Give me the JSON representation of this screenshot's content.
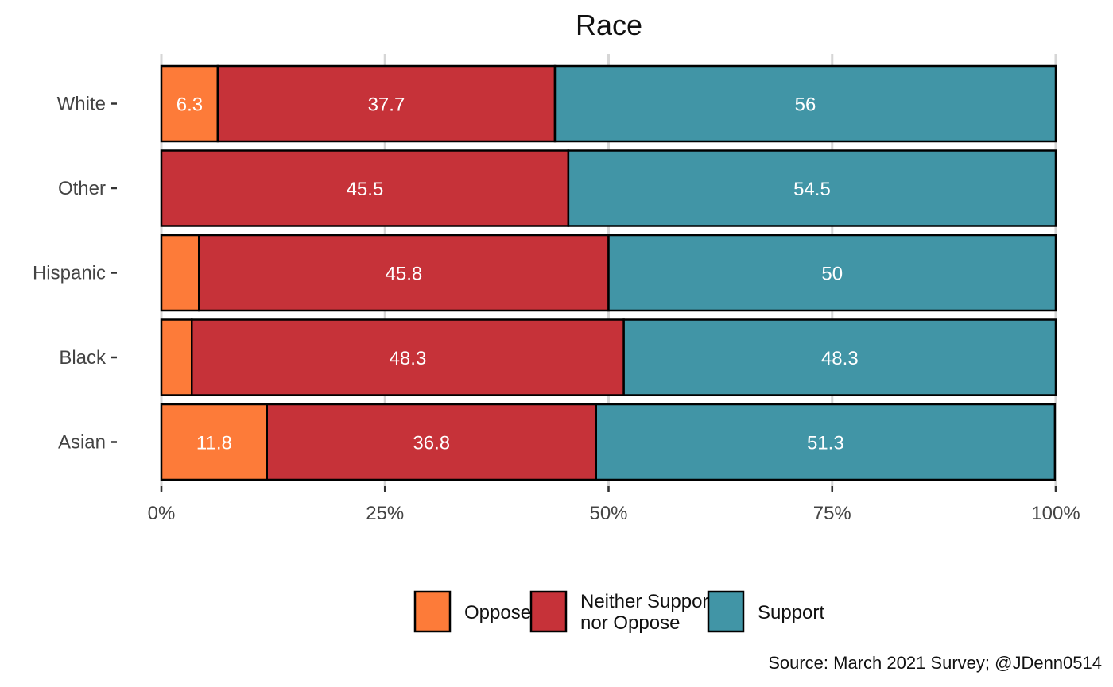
{
  "chart_data": {
    "type": "bar",
    "orientation": "horizontal",
    "stacked": true,
    "title": "Race",
    "categories": [
      "White",
      "Other",
      "Hispanic",
      "Black",
      "Asian"
    ],
    "series": [
      {
        "name": "Oppose",
        "color": "#FD7B39",
        "values": [
          6.3,
          0,
          4.2,
          3.4,
          11.8
        ],
        "labels": [
          "6.3",
          "",
          "",
          "",
          "11.8"
        ]
      },
      {
        "name": "Neither Support nor Oppose",
        "legend_lines": [
          "Neither Support",
          "nor Oppose"
        ],
        "color": "#C63239",
        "values": [
          37.7,
          45.5,
          45.8,
          48.3,
          36.8
        ],
        "labels": [
          "37.7",
          "45.5",
          "45.8",
          "48.3",
          "36.8"
        ]
      },
      {
        "name": "Support",
        "color": "#4195A6",
        "values": [
          56,
          54.5,
          50,
          48.3,
          51.3
        ],
        "labels": [
          "56",
          "54.5",
          "50",
          "48.3",
          "51.3"
        ]
      }
    ],
    "xlim": [
      0,
      100
    ],
    "xticks": [
      "0%",
      "25%",
      "50%",
      "75%",
      "100%"
    ],
    "xtick_values": [
      0,
      25,
      50,
      75,
      100
    ],
    "grid": true,
    "legend_position": "bottom",
    "caption": "Source: March 2021 Survey; @JDenn0514"
  }
}
